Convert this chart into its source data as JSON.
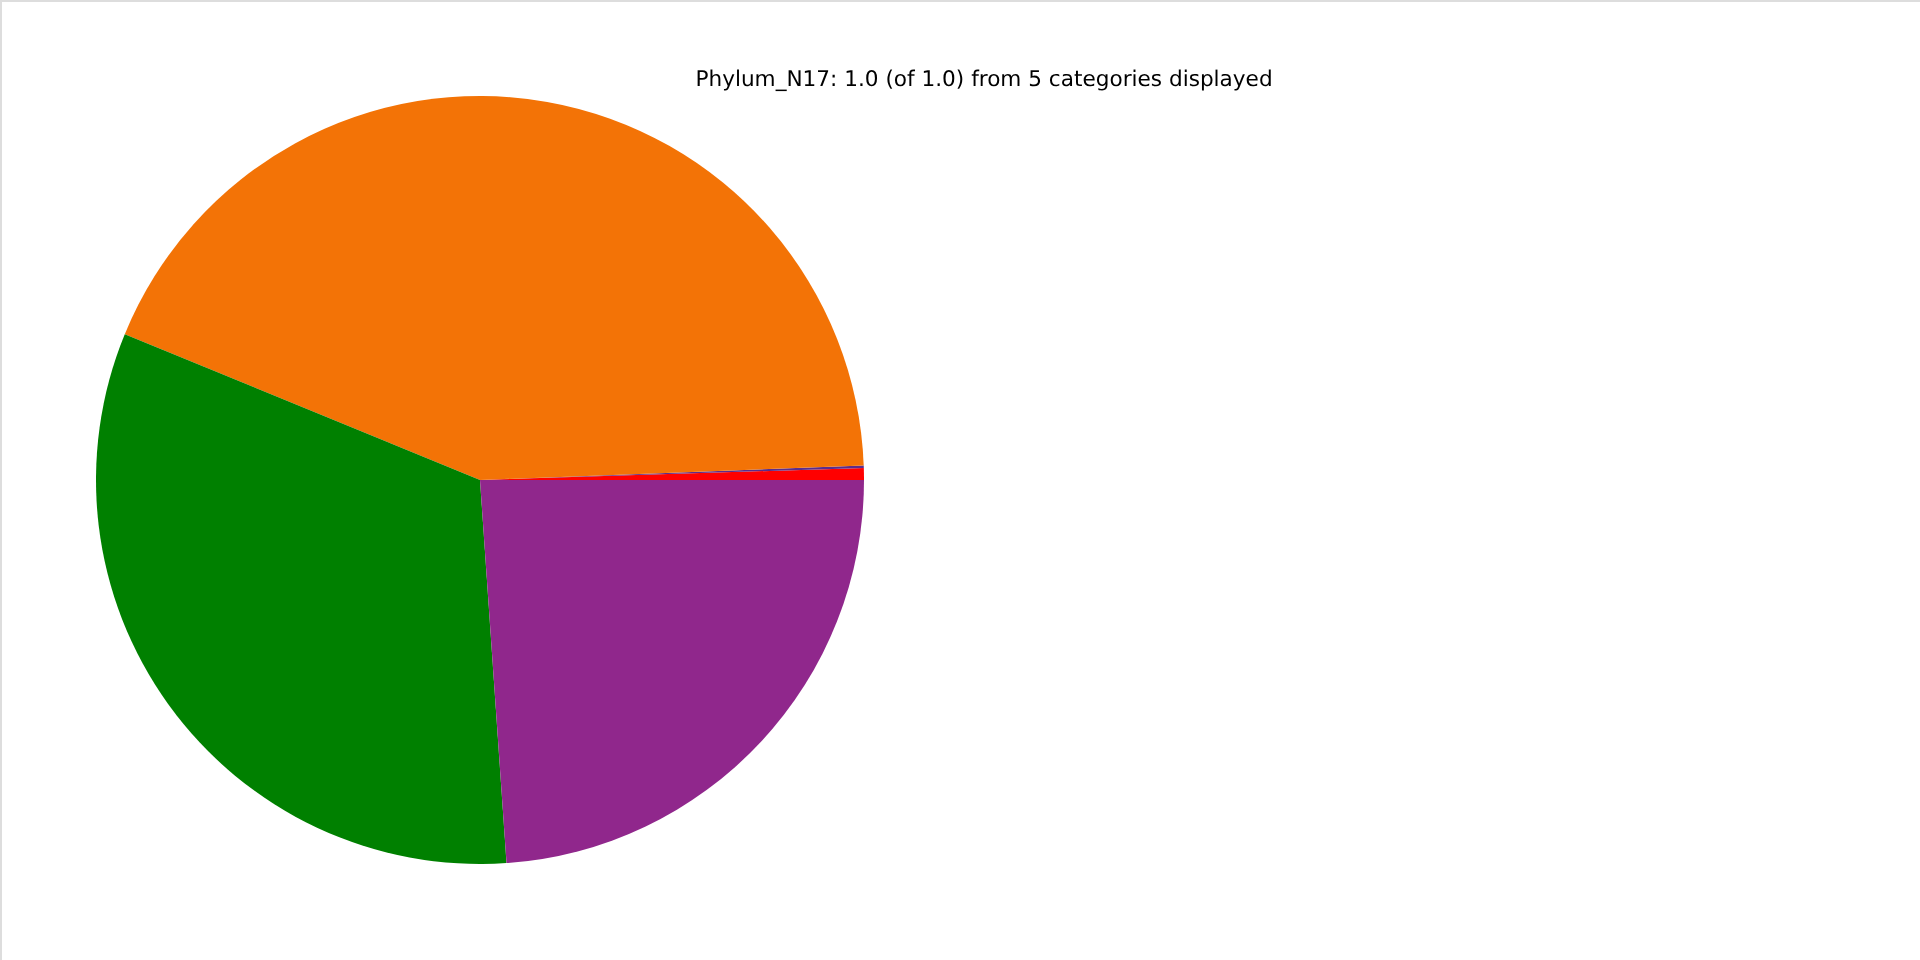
{
  "chart_data": {
    "type": "pie",
    "title": "Phylum_N17: 1.0 (of 1.0) from 5 categories displayed",
    "categories": [
      null,
      null,
      null,
      null,
      null
    ],
    "values": [
      0.5,
      0.1,
      43.2,
      32.3,
      23.9
    ],
    "colors": [
      "#ff0000",
      "#5a2d8c",
      "#f37306",
      "#008000",
      "#90278c"
    ]
  }
}
